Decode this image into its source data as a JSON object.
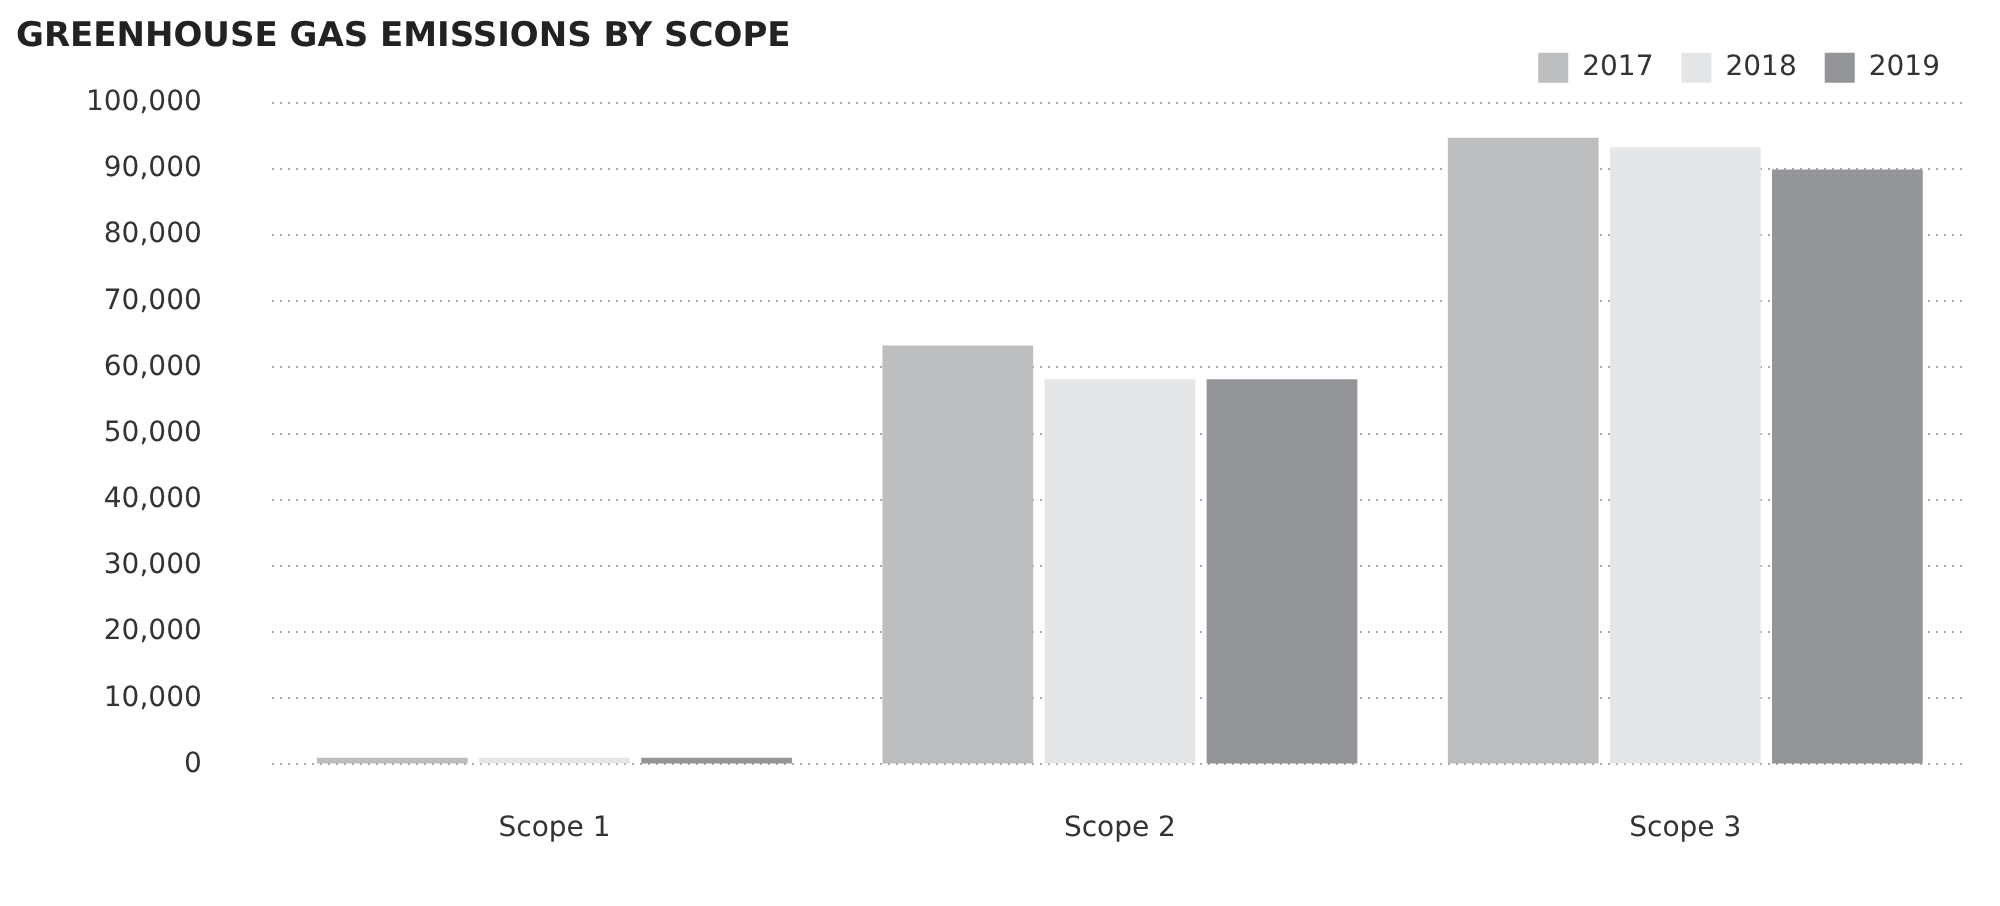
{
  "chart_data": {
    "type": "bar",
    "title": "GREENHOUSE GAS EMISSIONS BY SCOPE",
    "categories": [
      "Scope 1",
      "Scope 2",
      "Scope 3"
    ],
    "series": [
      {
        "name": "2017",
        "color": "#bdbec0",
        "values": [
          1000,
          63300,
          94700
        ]
      },
      {
        "name": "2018",
        "color": "#e5e6e8",
        "values": [
          1000,
          58200,
          93300
        ]
      },
      {
        "name": "2019",
        "color": "#949598",
        "values": [
          1000,
          58200,
          89900
        ]
      }
    ],
    "ylim": [
      0,
      100000
    ],
    "yticks": [
      0,
      {
        "value": 10000,
        "label": "10,000"
      },
      {
        "value": 20000,
        "label": "20,000"
      },
      {
        "value": 30000,
        "label": "30,000"
      },
      {
        "value": 40000,
        "label": "40,000"
      },
      {
        "value": 50000,
        "label": "50,000"
      },
      {
        "value": 60000,
        "label": "60,000"
      },
      {
        "value": 70000,
        "label": "70,000"
      },
      {
        "value": 80000,
        "label": "80,000"
      },
      {
        "value": 90000,
        "label": "90,000"
      },
      {
        "value": 100000,
        "label": "100,000"
      }
    ],
    "grid": "y",
    "legend": "top right"
  }
}
